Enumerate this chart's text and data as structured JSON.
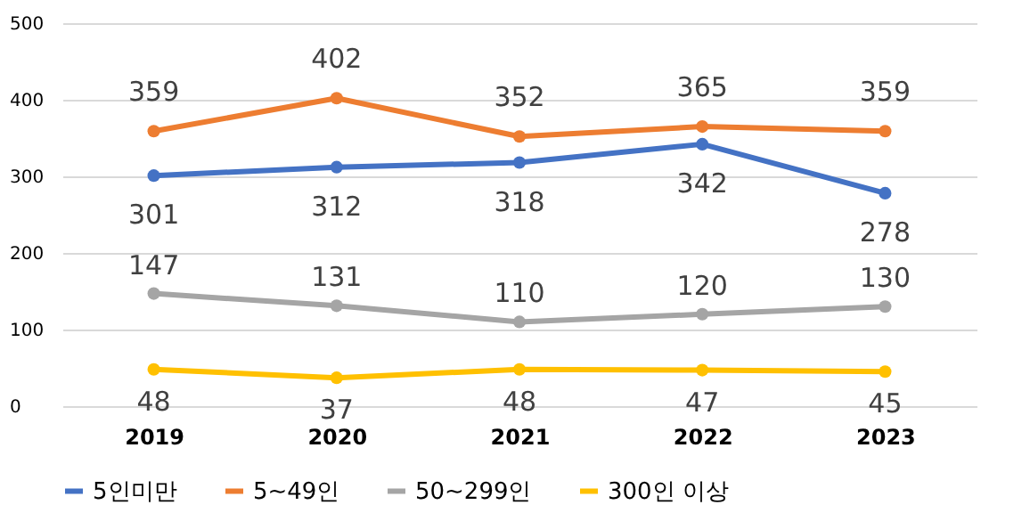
{
  "chart_data": {
    "type": "line",
    "categories": [
      "2019",
      "2020",
      "2021",
      "2022",
      "2023"
    ],
    "series": [
      {
        "name": "5인미만",
        "color": "#4472c4",
        "values": [
          301,
          312,
          318,
          342,
          278
        ]
      },
      {
        "name": "5~49인",
        "color": "#ed7d31",
        "values": [
          359,
          402,
          352,
          365,
          359
        ]
      },
      {
        "name": "50~299인",
        "color": "#a5a5a5",
        "values": [
          147,
          131,
          110,
          120,
          130
        ]
      },
      {
        "name": "300인 이상",
        "color": "#ffc000",
        "values": [
          48,
          37,
          48,
          47,
          45
        ]
      }
    ],
    "ylim": [
      0,
      500
    ],
    "yticks": [
      0,
      100,
      200,
      300,
      400,
      500
    ],
    "grid": "y",
    "legend": "bottom",
    "marker": "circle",
    "line_style": "solid",
    "data_labels": true
  }
}
